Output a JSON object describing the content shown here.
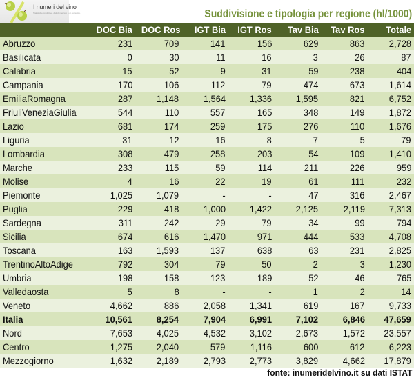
{
  "header": {
    "logo_text": "I numeri del vino",
    "logo_subtitle": "Statistiche produttive, dati di mercato e di consumo.",
    "title": "Suddivisione e tipologia per regione (hl/1000)"
  },
  "colors": {
    "header_bg": "#4f6228",
    "title": "#76923c",
    "row_odd": "#d8e4bc",
    "row_even": "#ebf1de"
  },
  "table": {
    "columns": [
      "",
      "DOC Bia",
      "DOC Ros",
      "IGT Bia",
      "IGT Ros",
      "Tav Bia",
      "Tav Ros",
      "Totale"
    ],
    "rows": [
      [
        "Abruzzo",
        "231",
        "709",
        "141",
        "156",
        "629",
        "863",
        "2,728"
      ],
      [
        "Basilicata",
        "0",
        "30",
        "11",
        "16",
        "3",
        "26",
        "87"
      ],
      [
        "Calabria",
        "15",
        "52",
        "9",
        "31",
        "59",
        "238",
        "404"
      ],
      [
        "Campania",
        "170",
        "106",
        "112",
        "79",
        "474",
        "673",
        "1,614"
      ],
      [
        "EmiliaRomagna",
        "287",
        "1,148",
        "1,564",
        "1,336",
        "1,595",
        "821",
        "6,752"
      ],
      [
        "FriuliVeneziaGiulia",
        "544",
        "110",
        "557",
        "165",
        "348",
        "149",
        "1,872"
      ],
      [
        "Lazio",
        "681",
        "174",
        "259",
        "175",
        "276",
        "110",
        "1,676"
      ],
      [
        "Liguria",
        "31",
        "12",
        "16",
        "8",
        "7",
        "5",
        "79"
      ],
      [
        "Lombardia",
        "308",
        "479",
        "258",
        "203",
        "54",
        "109",
        "1,410"
      ],
      [
        "Marche",
        "233",
        "115",
        "59",
        "114",
        "211",
        "226",
        "959"
      ],
      [
        "Molise",
        "4",
        "16",
        "22",
        "19",
        "61",
        "111",
        "232"
      ],
      [
        "Piemonte",
        "1,025",
        "1,079",
        "-",
        "-",
        "47",
        "316",
        "2,467"
      ],
      [
        "Puglia",
        "229",
        "418",
        "1,000",
        "1,422",
        "2,125",
        "2,119",
        "7,313"
      ],
      [
        "Sardegna",
        "311",
        "242",
        "29",
        "79",
        "34",
        "99",
        "794"
      ],
      [
        "Sicilia",
        "674",
        "616",
        "1,470",
        "971",
        "444",
        "533",
        "4,708"
      ],
      [
        "Toscana",
        "163",
        "1,593",
        "137",
        "638",
        "63",
        "231",
        "2,825"
      ],
      [
        "TrentinoAltoAdige",
        "792",
        "304",
        "79",
        "50",
        "2",
        "3",
        "1,230"
      ],
      [
        "Umbria",
        "198",
        "158",
        "123",
        "189",
        "52",
        "46",
        "765"
      ],
      [
        "Valledaosta",
        "5",
        "8",
        "-",
        "-",
        "1",
        "2",
        "14"
      ],
      [
        "Veneto",
        "4,662",
        "886",
        "2,058",
        "1,341",
        "619",
        "167",
        "9,733"
      ],
      [
        "Italia",
        "10,561",
        "8,254",
        "7,904",
        "6,991",
        "7,102",
        "6,846",
        "47,659"
      ],
      [
        "Nord",
        "7,653",
        "4,025",
        "4,532",
        "3,102",
        "2,673",
        "1,572",
        "23,557"
      ],
      [
        "Centro",
        "1,275",
        "2,040",
        "579",
        "1,116",
        "600",
        "612",
        "6,223"
      ],
      [
        "Mezzogiorno",
        "1,632",
        "2,189",
        "2,793",
        "2,773",
        "3,829",
        "4,662",
        "17,879"
      ]
    ]
  },
  "footer": {
    "source": "fonte: inumeridelvino.it su dati ISTAT"
  }
}
